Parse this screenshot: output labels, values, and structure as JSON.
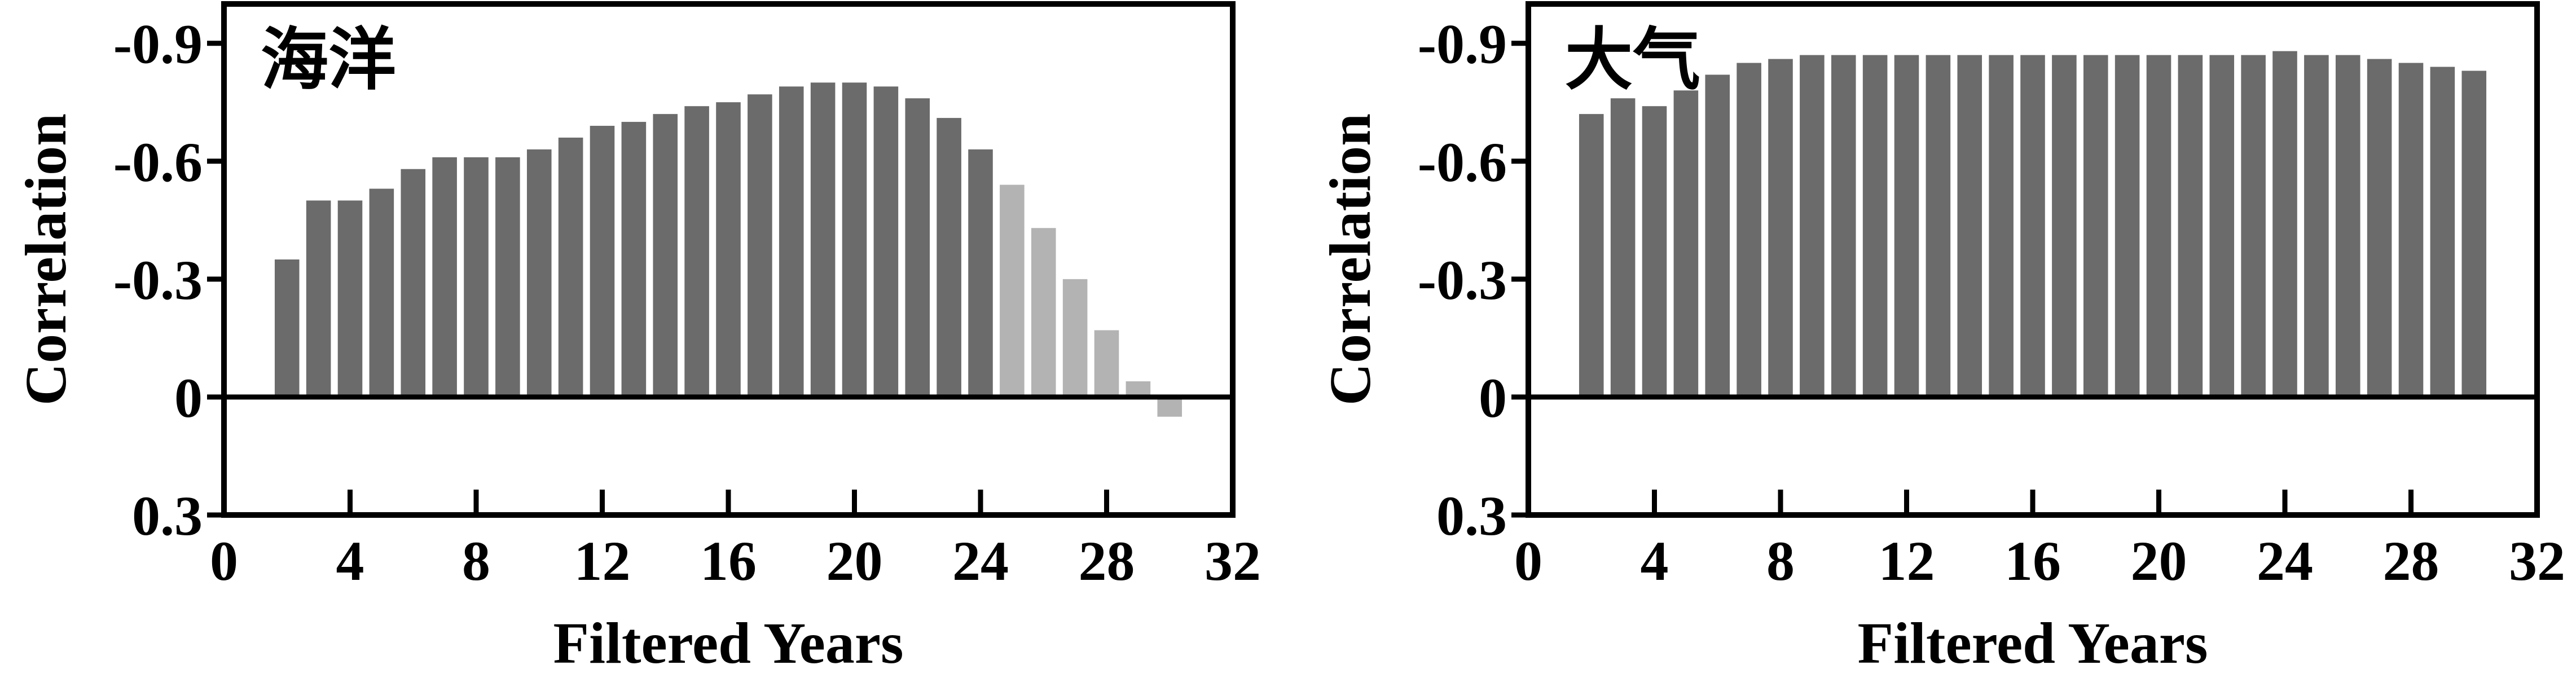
{
  "chart_data": [
    {
      "type": "bar",
      "title": "海洋",
      "xlabel": "Filtered Years",
      "ylabel": "Correlation",
      "xlim": [
        0,
        32
      ],
      "ylim": [
        -1.0,
        0.3
      ],
      "y_inverted": true,
      "x_ticks": [
        0,
        4,
        8,
        12,
        16,
        20,
        24,
        28,
        32
      ],
      "x_tick_labels": [
        "0",
        "4",
        "8",
        "12",
        "16",
        "20",
        "24",
        "28",
        "32"
      ],
      "y_ticks": [
        -0.9,
        -0.6,
        -0.3,
        0,
        0.3
      ],
      "y_tick_labels": [
        "-0.9",
        "-0.6",
        "-0.3",
        "0",
        "0.3"
      ],
      "zero_line": true,
      "bar_colors": {
        "significant": "#6b6b6b",
        "not_significant": "#b3b3b3"
      },
      "series": [
        {
          "x": [
            2,
            3,
            4,
            5,
            6,
            7,
            8,
            9,
            10,
            11,
            12,
            13,
            14,
            15,
            16,
            17,
            18,
            19,
            20,
            21,
            22,
            23,
            24,
            25,
            26,
            27,
            28,
            29,
            30
          ],
          "values": [
            -0.35,
            -0.5,
            -0.5,
            -0.53,
            -0.58,
            -0.61,
            -0.61,
            -0.61,
            -0.63,
            -0.66,
            -0.69,
            -0.7,
            -0.72,
            -0.74,
            -0.75,
            -0.77,
            -0.79,
            -0.8,
            -0.8,
            -0.79,
            -0.76,
            -0.71,
            -0.63,
            -0.54,
            -0.43,
            -0.3,
            -0.17,
            -0.04,
            0.05
          ],
          "significant": [
            true,
            true,
            true,
            true,
            true,
            true,
            true,
            true,
            true,
            true,
            true,
            true,
            true,
            true,
            true,
            true,
            true,
            true,
            true,
            true,
            true,
            true,
            true,
            false,
            false,
            false,
            false,
            false,
            false
          ]
        }
      ]
    },
    {
      "type": "bar",
      "title": "大气",
      "xlabel": "Filtered Years",
      "ylabel": "Correlation",
      "xlim": [
        0,
        32
      ],
      "ylim": [
        -1.0,
        0.3
      ],
      "y_inverted": true,
      "x_ticks": [
        0,
        4,
        8,
        12,
        16,
        20,
        24,
        28,
        32
      ],
      "x_tick_labels": [
        "0",
        "4",
        "8",
        "12",
        "16",
        "20",
        "24",
        "28",
        "32"
      ],
      "y_ticks": [
        -0.9,
        -0.6,
        -0.3,
        0,
        0.3
      ],
      "y_tick_labels": [
        "-0.9",
        "-0.6",
        "-0.3",
        "0",
        "0.3"
      ],
      "zero_line": true,
      "bar_colors": {
        "significant": "#6b6b6b",
        "not_significant": "#b3b3b3"
      },
      "series": [
        {
          "x": [
            2,
            3,
            4,
            5,
            6,
            7,
            8,
            9,
            10,
            11,
            12,
            13,
            14,
            15,
            16,
            17,
            18,
            19,
            20,
            21,
            22,
            23,
            24,
            25,
            26,
            27,
            28,
            29,
            30
          ],
          "values": [
            -0.72,
            -0.76,
            -0.74,
            -0.78,
            -0.82,
            -0.85,
            -0.86,
            -0.87,
            -0.87,
            -0.87,
            -0.87,
            -0.87,
            -0.87,
            -0.87,
            -0.87,
            -0.87,
            -0.87,
            -0.87,
            -0.87,
            -0.87,
            -0.87,
            -0.87,
            -0.88,
            -0.87,
            -0.87,
            -0.86,
            -0.85,
            -0.84,
            -0.83
          ],
          "significant": [
            true,
            true,
            true,
            true,
            true,
            true,
            true,
            true,
            true,
            true,
            true,
            true,
            true,
            true,
            true,
            true,
            true,
            true,
            true,
            true,
            true,
            true,
            true,
            true,
            true,
            true,
            true,
            true,
            true
          ]
        }
      ]
    }
  ]
}
